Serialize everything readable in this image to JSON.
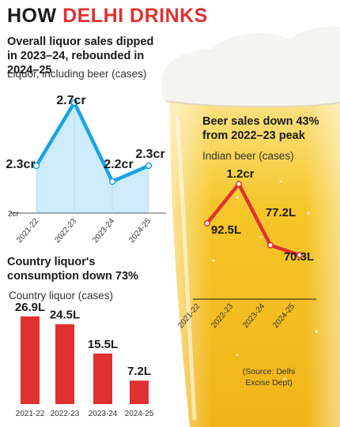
{
  "page": {
    "title_part1": "HOW",
    "title_part2": "DELHI DRINKS",
    "source_line1": "(Source: Delhi",
    "source_line2": "Excise Dept)"
  },
  "colors": {
    "accent_red": "#e03131",
    "line_blue": "#1aa3e6",
    "area_blue": "#cdebfa",
    "beer_yellow": "#f6c220",
    "foam_white": "#f4f4f0"
  },
  "chart_data": [
    {
      "type": "area",
      "title": "Overall liquor sales dipped in 2023–24, rebounded in 2024–25",
      "subtitle": "Liquor, including beer (cases)",
      "categories": [
        "2021-22",
        "2022-23",
        "2023-24",
        "2024-25"
      ],
      "values": [
        2.3,
        2.7,
        2.2,
        2.3
      ],
      "value_labels": [
        "2.3cr",
        "2.7cr",
        "2.2cr",
        "2.3cr"
      ],
      "baseline_label": "2cr",
      "ylim": [
        2.0,
        2.8
      ],
      "unit": "crore cases",
      "grid": false
    },
    {
      "type": "bar",
      "title": "Country liquor's consumption down 73%",
      "subtitle": "Country liquor (cases)",
      "categories": [
        "2021-22",
        "2022-23",
        "2023-24",
        "2024-25"
      ],
      "values": [
        26.9,
        24.5,
        15.5,
        7.2
      ],
      "value_labels": [
        "26.9L",
        "24.5L",
        "15.5L",
        "7.2L"
      ],
      "ylim": [
        0,
        30
      ],
      "unit": "lakh cases",
      "grid": false
    },
    {
      "type": "line",
      "title": "Beer sales down 43% from 2022–23 peak",
      "subtitle": "Indian beer (cases)",
      "categories": [
        "2021-22",
        "2022-23",
        "2023-24",
        "2024-25"
      ],
      "values": [
        92.5,
        120,
        77.2,
        70.3
      ],
      "value_labels": [
        "92.5L",
        "1.2cr",
        "77.2L",
        "70.3L"
      ],
      "ylim": [
        50,
        130
      ],
      "unit": "lakh cases",
      "grid": false
    }
  ]
}
